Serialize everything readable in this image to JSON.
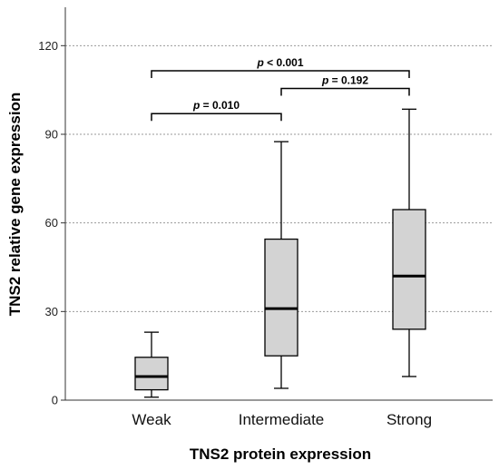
{
  "chart_data": {
    "type": "box",
    "title": "",
    "xlabel": "TNS2 protein expression",
    "ylabel": "TNS2 relative gene expression",
    "ylim": [
      0,
      133
    ],
    "yticks": [
      0,
      30,
      60,
      90,
      120
    ],
    "ytick_labels": [
      "0",
      "30",
      "60",
      "90",
      "120"
    ],
    "grid": "horizontal dotted at 30, 60, 90, 120",
    "categories": [
      "Weak",
      "Intermediate",
      "Strong"
    ],
    "boxes": [
      {
        "category": "Weak",
        "whisker_low": 1,
        "q1": 3.5,
        "median": 8,
        "q3": 14.5,
        "whisker_high": 23
      },
      {
        "category": "Intermediate",
        "whisker_low": 4,
        "q1": 15,
        "median": 31,
        "q3": 54.5,
        "whisker_high": 87.5
      },
      {
        "category": "Strong",
        "whisker_low": 8,
        "q1": 24,
        "median": 42,
        "q3": 64.5,
        "whisker_high": 98.5
      }
    ],
    "box_fill": "#d3d3d3",
    "significance": [
      {
        "from": "Weak",
        "to": "Intermediate",
        "level": 97,
        "p_symbol": "p",
        "p_text": " = 0.010"
      },
      {
        "from": "Intermediate",
        "to": "Strong",
        "level": 105.5,
        "p_symbol": "p",
        "p_text": " = 0.192"
      },
      {
        "from": "Weak",
        "to": "Strong",
        "level": 111.5,
        "p_symbol": "p",
        "p_text": " < 0.001"
      }
    ]
  }
}
